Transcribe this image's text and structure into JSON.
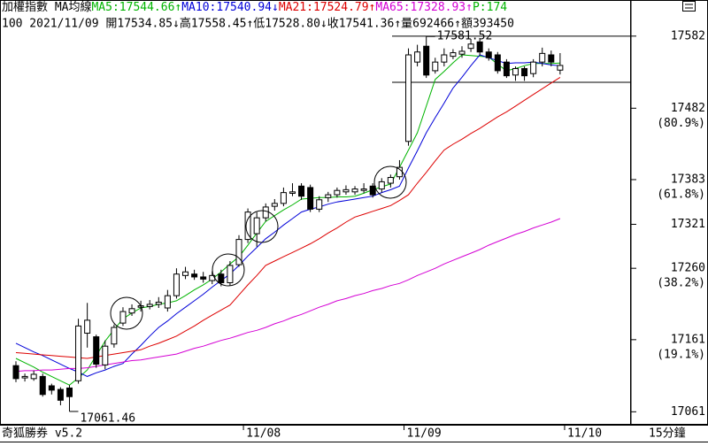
{
  "chart_data": {
    "type": "candlestick",
    "header": {
      "row1": [
        {
          "text": "加權指數 MA均線",
          "color": "#000000"
        },
        {
          "text": "MA5:17544.66↑",
          "color": "#00b400"
        },
        {
          "text": "MA10:17540.94↓",
          "color": "#0000d8"
        },
        {
          "text": "MA21:17524.79↑",
          "color": "#dd0000"
        },
        {
          "text": "MA65:17328.93↑",
          "color": "#d400d4"
        },
        {
          "text": "P:174",
          "color": "#00b400"
        }
      ],
      "row2": "100 2021/11/09 開17534.85↓高17558.45↑低17528.80↓收17541.36↑量692466↑額393450"
    },
    "footer": {
      "brand": "奇狐勝券 v5.2",
      "period": "15分鐘"
    },
    "categories": [
      null,
      null,
      null,
      null,
      null,
      null,
      null,
      null,
      null,
      null,
      null,
      null,
      null,
      null,
      null,
      null,
      null,
      null,
      null,
      null,
      null,
      null,
      null,
      null,
      null,
      null,
      null,
      null,
      null,
      null,
      null,
      null,
      null,
      null,
      null,
      null,
      null,
      null,
      null,
      null,
      null,
      null,
      null,
      null,
      null,
      null,
      null,
      null,
      null,
      null,
      null,
      null,
      null,
      null,
      null,
      null,
      null,
      null,
      null,
      null,
      null,
      null
    ],
    "xticks": [
      {
        "value": 26,
        "label": "11/08"
      },
      {
        "value": 44,
        "label": "11/09"
      },
      {
        "value": 62,
        "label": "11/10"
      }
    ],
    "open": [
      17125,
      17108,
      17107,
      17110,
      17097,
      17092,
      17094,
      17104,
      17170,
      17165,
      17126,
      17155,
      17184,
      17198,
      17206,
      17207,
      17210,
      17205,
      17222,
      17250,
      17252,
      17248,
      17243,
      17252,
      17240,
      17265,
      17300,
      17308,
      17330,
      17346,
      17350,
      17364,
      17374,
      17372,
      17342,
      17358,
      17362,
      17366,
      17366,
      17368,
      17374,
      17370,
      17378,
      17387,
      17436,
      17546,
      17568,
      17534,
      17546,
      17554,
      17557,
      17565,
      17574,
      17560,
      17556,
      17546,
      17528,
      17537,
      17530,
      17546,
      17556,
      17534.85
    ],
    "high": [
      17131,
      17114,
      17118,
      17114,
      17100,
      17095,
      17098,
      17190,
      17212,
      17168,
      17160,
      17182,
      17206,
      17210,
      17215,
      17216,
      17220,
      17230,
      17260,
      17262,
      17258,
      17255,
      17256,
      17258,
      17270,
      17306,
      17343,
      17338,
      17350,
      17356,
      17372,
      17378,
      17378,
      17376,
      17360,
      17366,
      17372,
      17375,
      17374,
      17378,
      17378,
      17385,
      17390,
      17410,
      17565,
      17570,
      17581.52,
      17552,
      17565,
      17564,
      17568,
      17578,
      17578,
      17565,
      17560,
      17550,
      17540,
      17540,
      17550,
      17566,
      17562,
      17558.45
    ],
    "low": [
      17102,
      17103,
      17104,
      17082,
      17085,
      17070,
      17061.46,
      17100,
      17150,
      17122,
      17120,
      17150,
      17180,
      17194,
      17200,
      17203,
      17205,
      17200,
      17218,
      17245,
      17244,
      17240,
      17238,
      17235,
      17236,
      17262,
      17295,
      17290,
      17325,
      17340,
      17346,
      17360,
      17355,
      17338,
      17338,
      17352,
      17358,
      17362,
      17362,
      17364,
      17358,
      17365,
      17372,
      17383,
      17430,
      17540,
      17524,
      17530,
      17540,
      17550,
      17552,
      17560,
      17555,
      17548,
      17530,
      17524,
      17520,
      17520,
      17525,
      17540,
      17540,
      17528.8
    ],
    "close": [
      17107,
      17110,
      17113,
      17085,
      17091,
      17077,
      17082,
      17180,
      17188,
      17127,
      17152,
      17178,
      17200,
      17204,
      17208,
      17210,
      17213,
      17222,
      17252,
      17255,
      17248,
      17245,
      17250,
      17240,
      17264,
      17300,
      17338,
      17330,
      17345,
      17350,
      17365,
      17366,
      17360,
      17342,
      17355,
      17362,
      17368,
      17369,
      17370,
      17370,
      17362,
      17380,
      17386,
      17400,
      17556,
      17560,
      17528,
      17546,
      17556,
      17559,
      17561,
      17571,
      17560,
      17552,
      17534,
      17527,
      17537,
      17527,
      17546,
      17558,
      17546,
      17541.36
    ],
    "series": [
      {
        "color": "#00b400",
        "values": [
          17135,
          17129,
          17123,
          17116,
          17110,
          17104,
          17098,
          17108,
          17119,
          17139,
          17159,
          17175,
          17190,
          17198,
          17205,
          17207,
          17210,
          17212,
          17215,
          17222,
          17230,
          17237,
          17245,
          17255,
          17266,
          17276,
          17292,
          17309,
          17325,
          17333,
          17341,
          17348,
          17356,
          17357,
          17358,
          17358,
          17359,
          17359,
          17360,
          17364,
          17369,
          17373,
          17377,
          17400,
          17424,
          17448,
          17485,
          17522,
          17533,
          17545,
          17556,
          17555,
          17554,
          17553,
          17543,
          17534,
          17537,
          17541,
          17544,
          17544,
          17544,
          17544.66
        ]
      },
      {
        "color": "#0000d8",
        "values": [
          17156,
          17150,
          17144,
          17139,
          17133,
          17127,
          17121,
          17116,
          17110,
          17115,
          17119,
          17124,
          17128,
          17141,
          17153,
          17166,
          17178,
          17187,
          17197,
          17206,
          17215,
          17224,
          17234,
          17243,
          17252,
          17264,
          17277,
          17289,
          17301,
          17310,
          17320,
          17329,
          17338,
          17342,
          17345,
          17349,
          17352,
          17354,
          17356,
          17358,
          17360,
          17365,
          17369,
          17374,
          17399,
          17423,
          17448,
          17469,
          17489,
          17510,
          17525,
          17541,
          17556,
          17552,
          17548,
          17544,
          17545,
          17545,
          17546,
          17544,
          17542,
          17540.94
        ]
      },
      {
        "color": "#dd0000",
        "values": [
          17143,
          17142,
          17141,
          17140,
          17139,
          17138,
          17137,
          17136,
          17135,
          17137,
          17139,
          17141,
          17143,
          17145,
          17147,
          17152,
          17156,
          17161,
          17166,
          17173,
          17180,
          17188,
          17195,
          17202,
          17209,
          17223,
          17237,
          17250,
          17264,
          17270,
          17276,
          17282,
          17288,
          17294,
          17301,
          17309,
          17316,
          17324,
          17331,
          17335,
          17339,
          17343,
          17347,
          17354,
          17362,
          17378,
          17393,
          17409,
          17424,
          17432,
          17439,
          17447,
          17454,
          17462,
          17470,
          17477,
          17485,
          17493,
          17501,
          17509,
          17517,
          17524.79
        ]
      },
      {
        "color": "#d400d4",
        "values": [
          17117,
          17118,
          17118,
          17119,
          17119,
          17120,
          17121,
          17121,
          17122,
          17124,
          17126,
          17128,
          17130,
          17132,
          17133,
          17135,
          17137,
          17139,
          17141,
          17145,
          17149,
          17152,
          17156,
          17160,
          17163,
          17167,
          17171,
          17174,
          17178,
          17183,
          17187,
          17192,
          17196,
          17201,
          17206,
          17210,
          17215,
          17218,
          17222,
          17225,
          17229,
          17232,
          17236,
          17239,
          17244,
          17250,
          17255,
          17260,
          17266,
          17271,
          17276,
          17281,
          17286,
          17292,
          17297,
          17302,
          17307,
          17311,
          17316,
          17320,
          17324,
          17328.93
        ]
      }
    ],
    "annotations": [
      {
        "text": "17581.52",
        "value": 17581.52,
        "index": 46
      },
      {
        "text": "17061.46",
        "value": 17061.46,
        "index": 6
      }
    ],
    "hlines": [
      17582,
      17518
    ],
    "ylim": [
      17043,
      17610
    ],
    "yticks": [
      17582,
      17482,
      17383,
      17321,
      17260,
      17161,
      17061
    ],
    "fib_labels": [
      {
        "value": 17482,
        "label": "(80.9%)"
      },
      {
        "value": 17383,
        "label": "(61.8%)"
      },
      {
        "value": 17260,
        "label": "(38.2%)"
      },
      {
        "value": 17161,
        "label": "(19.1%)"
      }
    ]
  }
}
